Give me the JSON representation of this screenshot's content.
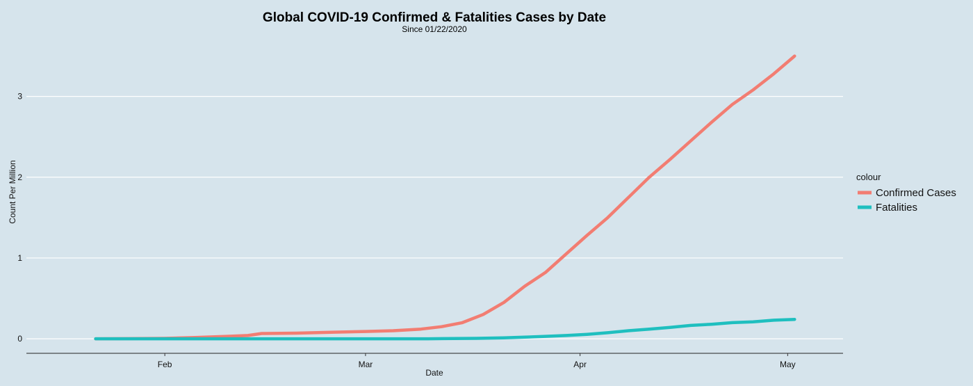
{
  "chart_data": {
    "type": "line",
    "title": "Global COVID-19 Confirmed & Fatalities Cases by Date",
    "subtitle": "Since 01/22/2020",
    "xlabel": "Date",
    "ylabel": "Count Per Million",
    "xlim": [
      "2020-01-12",
      "2020-05-09"
    ],
    "ylim": [
      -0.18,
      3.72
    ],
    "x_ticks": [
      {
        "date": "2020-02-01",
        "label": "Feb"
      },
      {
        "date": "2020-03-01",
        "label": "Mar"
      },
      {
        "date": "2020-04-01",
        "label": "Apr"
      },
      {
        "date": "2020-05-01",
        "label": "May"
      }
    ],
    "y_ticks": [
      {
        "value": 0,
        "label": "0"
      },
      {
        "value": 1,
        "label": "1"
      },
      {
        "value": 2,
        "label": "2"
      },
      {
        "value": 3,
        "label": "3"
      }
    ],
    "grid": true,
    "legend": {
      "title": "colour",
      "position": "right"
    },
    "series": [
      {
        "name": "Confirmed Cases",
        "color": "#f27d72",
        "points": [
          [
            "2020-01-22",
            0.0
          ],
          [
            "2020-01-27",
            0.002
          ],
          [
            "2020-02-01",
            0.005
          ],
          [
            "2020-02-05",
            0.015
          ],
          [
            "2020-02-10",
            0.03
          ],
          [
            "2020-02-13",
            0.04
          ],
          [
            "2020-02-15",
            0.065
          ],
          [
            "2020-02-20",
            0.07
          ],
          [
            "2020-02-25",
            0.08
          ],
          [
            "2020-03-01",
            0.09
          ],
          [
            "2020-03-05",
            0.1
          ],
          [
            "2020-03-09",
            0.12
          ],
          [
            "2020-03-12",
            0.15
          ],
          [
            "2020-03-15",
            0.2
          ],
          [
            "2020-03-18",
            0.3
          ],
          [
            "2020-03-21",
            0.45
          ],
          [
            "2020-03-24",
            0.65
          ],
          [
            "2020-03-27",
            0.82
          ],
          [
            "2020-03-30",
            1.05
          ],
          [
            "2020-04-02",
            1.28
          ],
          [
            "2020-04-05",
            1.5
          ],
          [
            "2020-04-08",
            1.75
          ],
          [
            "2020-04-11",
            2.0
          ],
          [
            "2020-04-14",
            2.22
          ],
          [
            "2020-04-17",
            2.45
          ],
          [
            "2020-04-20",
            2.68
          ],
          [
            "2020-04-23",
            2.9
          ],
          [
            "2020-04-26",
            3.08
          ],
          [
            "2020-04-29",
            3.28
          ],
          [
            "2020-05-02",
            3.5
          ]
        ]
      },
      {
        "name": "Fatalities",
        "color": "#1fbfbf",
        "points": [
          [
            "2020-01-22",
            0.0
          ],
          [
            "2020-02-01",
            0.0
          ],
          [
            "2020-03-01",
            0.0
          ],
          [
            "2020-03-10",
            0.0
          ],
          [
            "2020-03-17",
            0.005
          ],
          [
            "2020-03-21",
            0.012
          ],
          [
            "2020-03-24",
            0.02
          ],
          [
            "2020-03-27",
            0.03
          ],
          [
            "2020-03-30",
            0.04
          ],
          [
            "2020-04-02",
            0.055
          ],
          [
            "2020-04-05",
            0.075
          ],
          [
            "2020-04-08",
            0.1
          ],
          [
            "2020-04-11",
            0.12
          ],
          [
            "2020-04-14",
            0.14
          ],
          [
            "2020-04-17",
            0.165
          ],
          [
            "2020-04-20",
            0.18
          ],
          [
            "2020-04-23",
            0.2
          ],
          [
            "2020-04-26",
            0.21
          ],
          [
            "2020-04-29",
            0.23
          ],
          [
            "2020-05-02",
            0.24
          ]
        ]
      }
    ]
  }
}
